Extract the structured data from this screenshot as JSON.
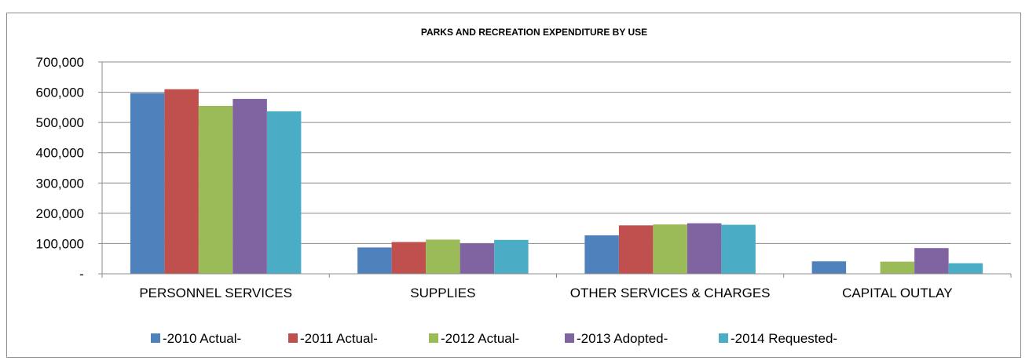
{
  "chart_data": {
    "type": "bar",
    "title": "PARKS AND RECREATION EXPENDITURE BY USE",
    "categories": [
      "PERSONNEL SERVICES",
      "SUPPLIES",
      "OTHER SERVICES & CHARGES",
      "CAPITAL OUTLAY"
    ],
    "series": [
      {
        "name": "-2010 Actual-",
        "color": "#4f81bd",
        "values": [
          597000,
          87000,
          127000,
          41000
        ]
      },
      {
        "name": "-2011 Actual-",
        "color": "#c0504d",
        "values": [
          610000,
          105000,
          160000,
          0
        ]
      },
      {
        "name": "-2012 Actual-",
        "color": "#9bbb59",
        "values": [
          555000,
          113000,
          163000,
          40000
        ]
      },
      {
        "name": "-2013 Adopted-",
        "color": "#8064a2",
        "values": [
          578000,
          100000,
          167000,
          85000
        ]
      },
      {
        "name": "-2014 Requested-",
        "color": "#4bacc6",
        "values": [
          537000,
          112000,
          162000,
          35000
        ]
      }
    ],
    "ylim": [
      0,
      700000
    ],
    "yticks": [
      "-",
      "100,000",
      "200,000",
      "300,000",
      "400,000",
      "500,000",
      "600,000",
      "700,000"
    ],
    "grid": true,
    "legend_position": "bottom"
  }
}
